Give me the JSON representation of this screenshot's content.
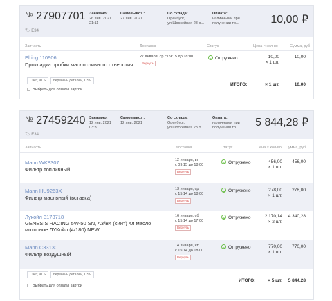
{
  "columns": {
    "part": "Запчасть",
    "delivery": "Доставка",
    "status": "Статус",
    "price_qty": "Цена × кол-во",
    "sum": "Сумма, руб"
  },
  "return_label": "Вернуть",
  "buttons": {
    "invoice": "Счёт, XLS",
    "parts_list": "перечень деталей, CSV"
  },
  "select_for_payment": "Выбрать для оплаты картой",
  "itogo_label": "ИТОГО:",
  "labels": {
    "ordered": "Заказано:",
    "pickup": "Самовывоз :",
    "from_warehouse": "Со склада:",
    "payment": "Оплата:"
  },
  "orders": [
    {
      "number": "27907701",
      "tag": "E34",
      "ordered": "26 янв. 2021",
      "ordered_time": "21:11",
      "pickup": "27 янв. 2021",
      "warehouse_city": "Оренбург,",
      "warehouse_addr": "ул.Шоссейная 28 о...",
      "payment_1": "наличными при",
      "payment_2": "получении то...",
      "total": "10,00 ₽",
      "items": [
        {
          "brand": "Elring 110906",
          "desc": "Прокладка пробки маслосливного отверстия",
          "delivery_1": "27 января, ср с 09:15 до 18:00",
          "delivery_2": "",
          "status": "Отгружено",
          "price": "10,00",
          "qty": "× 1 шт.",
          "sum": "10,00"
        }
      ],
      "total_qty": "× 1 шт.",
      "total_sum": "10,00"
    },
    {
      "number": "27459240",
      "tag": "E34",
      "ordered": "12 янв. 2021",
      "ordered_time": "03:31",
      "pickup": "12 янв. 2021",
      "warehouse_city": "Оренбург,",
      "warehouse_addr": "ул.Шоссейная 28 о...",
      "payment_1": "наличными при",
      "payment_2": "получении то...",
      "total": "5 844,28 ₽",
      "items": [
        {
          "brand": "Mann WK8307",
          "desc": "Фильтр топливный",
          "delivery_1": "12 января, вт",
          "delivery_2": "с 09:15 до 18:00",
          "status": "Отгружено",
          "price": "456,00",
          "qty": "× 1 шт.",
          "sum": "456,00"
        },
        {
          "brand": "Mann HU9263X",
          "desc": "Фильтр масляный (вставка)",
          "delivery_1": "13 января, ср",
          "delivery_2": "с 15:14 до 18:00",
          "status": "Отгружено",
          "price": "278,00",
          "qty": "× 1 шт.",
          "sum": "278,00"
        },
        {
          "brand": "Лукойл 3173718",
          "desc": "GENESIS RACING 5W-50 SN, A3/B4 (синт) 4л масло моторное ЛУКойл (4/180) NEW",
          "delivery_1": "16 января, сб",
          "delivery_2": "с 15:14 до 17:00",
          "status": "Отгружено",
          "price": "2 170,14",
          "qty": "× 2 шт.",
          "sum": "4 340,28"
        },
        {
          "brand": "Mann C33130",
          "desc": "Фильтр воздушный",
          "delivery_1": "14 января, чт",
          "delivery_2": "с 15:14 до 18:00",
          "status": "Отгружено",
          "price": "770,00",
          "qty": "× 1 шт.",
          "sum": "770,00"
        }
      ],
      "total_qty": "× 5 шт.",
      "total_sum": "5 844,28"
    }
  ]
}
